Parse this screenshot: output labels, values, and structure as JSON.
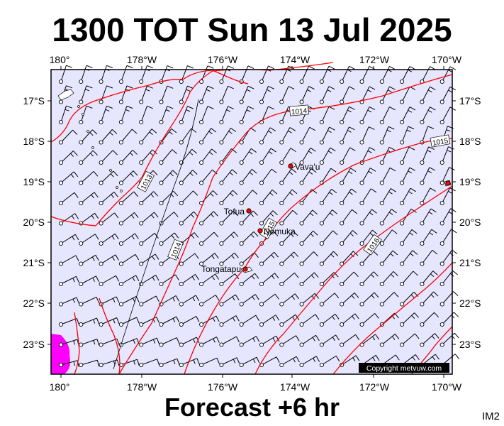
{
  "title": "1300 TOT Sun 13 Jul 2025",
  "subtitle": "Forecast +6 hr",
  "image_code": "IM2",
  "copyright": "Copyright metvuw.com",
  "colors": {
    "ocean": "#e6e6ff",
    "isobar": "#ff0000",
    "wind_barb": "#000000",
    "high_wind_patch": "#ff00ff",
    "town_marker": "#ff0000"
  },
  "map": {
    "lon_labels": [
      "180°",
      "178°W",
      "176°W",
      "174°W",
      "172°W",
      "170°W"
    ],
    "lat_labels": [
      "17°S",
      "18°S",
      "19°S",
      "20°S",
      "21°S",
      "22°S",
      "23°S"
    ],
    "isobars": [
      {
        "label": "1013"
      },
      {
        "label": "1014"
      },
      {
        "label": "1014"
      },
      {
        "label": "1015"
      },
      {
        "label": "1015"
      },
      {
        "label": "1016"
      }
    ],
    "places": [
      {
        "name": "Vava'u"
      },
      {
        "name": "Tofua"
      },
      {
        "name": "Nomuka"
      },
      {
        "name": "Tongatapu"
      }
    ]
  }
}
